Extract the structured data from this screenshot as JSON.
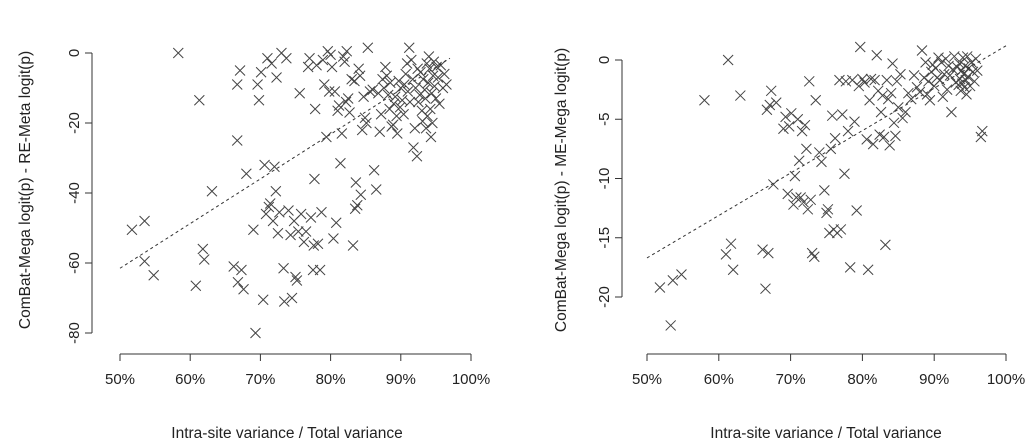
{
  "chart_data": [
    {
      "type": "scatter",
      "xlabel": "Intra-site variance / Total variance",
      "ylabel": "ComBat-Mega logit(p) - RE-Meta logit(p)",
      "xlim": [
        0.5,
        1.0
      ],
      "ylim": [
        -80,
        0
      ],
      "x_ticks": [
        0.5,
        0.6,
        0.7,
        0.8,
        0.9,
        1.0
      ],
      "x_tick_labels": [
        "50%",
        "60%",
        "70%",
        "80%",
        "90%",
        "100%"
      ],
      "y_ticks": [
        -80,
        -60,
        -40,
        -20,
        0
      ],
      "y_tick_labels": [
        "-80",
        "-60",
        "-40",
        "-20",
        "0"
      ],
      "marker": "x",
      "grid": false,
      "trend_line": {
        "style": "dashed",
        "x": [
          0.5,
          0.97
        ],
        "y": [
          -61.5,
          -1.5
        ]
      },
      "points": [
        [
          0.517,
          -50.5
        ],
        [
          0.535,
          -48
        ],
        [
          0.535,
          -59.5
        ],
        [
          0.548,
          -63.5
        ],
        [
          0.583,
          0
        ],
        [
          0.608,
          -66.5
        ],
        [
          0.613,
          -13.5
        ],
        [
          0.618,
          -56
        ],
        [
          0.62,
          -59
        ],
        [
          0.631,
          -39.5
        ],
        [
          0.662,
          -61
        ],
        [
          0.667,
          -25
        ],
        [
          0.667,
          -9
        ],
        [
          0.668,
          -65.5
        ],
        [
          0.671,
          -5
        ],
        [
          0.673,
          -62
        ],
        [
          0.676,
          -67.5
        ],
        [
          0.68,
          -34.5
        ],
        [
          0.69,
          -50.5
        ],
        [
          0.693,
          -80
        ],
        [
          0.696,
          -9
        ],
        [
          0.698,
          -13.5
        ],
        [
          0.701,
          -5.5
        ],
        [
          0.704,
          -70.5
        ],
        [
          0.706,
          -32
        ],
        [
          0.708,
          -46
        ],
        [
          0.71,
          -1.5
        ],
        [
          0.712,
          -44
        ],
        [
          0.714,
          -43
        ],
        [
          0.716,
          -3
        ],
        [
          0.718,
          -48
        ],
        [
          0.72,
          -32.5
        ],
        [
          0.722,
          -39.5
        ],
        [
          0.723,
          -7
        ],
        [
          0.725,
          -51.5
        ],
        [
          0.727,
          -45.5
        ],
        [
          0.73,
          0
        ],
        [
          0.733,
          -61.5
        ],
        [
          0.734,
          -71
        ],
        [
          0.737,
          -1.5
        ],
        [
          0.74,
          -45
        ],
        [
          0.743,
          -52
        ],
        [
          0.745,
          -70
        ],
        [
          0.748,
          -48
        ],
        [
          0.75,
          -64
        ],
        [
          0.752,
          -65
        ],
        [
          0.754,
          -51
        ],
        [
          0.756,
          -11.5
        ],
        [
          0.758,
          -46
        ],
        [
          0.762,
          -54
        ],
        [
          0.765,
          -51
        ],
        [
          0.768,
          -4
        ],
        [
          0.77,
          -1.5
        ],
        [
          0.772,
          -47
        ],
        [
          0.775,
          -62
        ],
        [
          0.776,
          -55
        ],
        [
          0.777,
          -36
        ],
        [
          0.778,
          -16
        ],
        [
          0.78,
          -3.5
        ],
        [
          0.782,
          -54.5
        ],
        [
          0.785,
          -62
        ],
        [
          0.787,
          -45.5
        ],
        [
          0.789,
          -2
        ],
        [
          0.791,
          -9
        ],
        [
          0.794,
          -24
        ],
        [
          0.796,
          0.5
        ],
        [
          0.798,
          -11
        ],
        [
          0.8,
          -0.5
        ],
        [
          0.802,
          -4
        ],
        [
          0.804,
          -53
        ],
        [
          0.806,
          -11
        ],
        [
          0.808,
          -48.5
        ],
        [
          0.81,
          -16.5
        ],
        [
          0.812,
          -15
        ],
        [
          0.814,
          -31.5
        ],
        [
          0.816,
          -23
        ],
        [
          0.818,
          -1
        ],
        [
          0.82,
          -2.5
        ],
        [
          0.822,
          -14
        ],
        [
          0.823,
          0.5
        ],
        [
          0.825,
          -13
        ],
        [
          0.827,
          -17
        ],
        [
          0.83,
          -7.5
        ],
        [
          0.832,
          -55
        ],
        [
          0.834,
          -8
        ],
        [
          0.835,
          -44.5
        ],
        [
          0.836,
          -37
        ],
        [
          0.838,
          -43.5
        ],
        [
          0.84,
          -4.5
        ],
        [
          0.842,
          -6.5
        ],
        [
          0.843,
          -40.5
        ],
        [
          0.845,
          -22
        ],
        [
          0.847,
          -12.5
        ],
        [
          0.849,
          -18.5
        ],
        [
          0.851,
          -20
        ],
        [
          0.853,
          1.5
        ],
        [
          0.856,
          -11
        ],
        [
          0.86,
          -10.5
        ],
        [
          0.862,
          -33.5
        ],
        [
          0.865,
          -39
        ],
        [
          0.868,
          -11.5
        ],
        [
          0.87,
          -22.5
        ],
        [
          0.872,
          -17.5
        ],
        [
          0.874,
          -7.5
        ],
        [
          0.876,
          -10
        ],
        [
          0.878,
          -4
        ],
        [
          0.88,
          -6.5
        ],
        [
          0.882,
          -12
        ],
        [
          0.884,
          -16
        ],
        [
          0.885,
          -8.5
        ],
        [
          0.887,
          -21
        ],
        [
          0.889,
          -20.5
        ],
        [
          0.89,
          -14.5
        ],
        [
          0.892,
          -12.5
        ],
        [
          0.894,
          -18
        ],
        [
          0.895,
          -23
        ],
        [
          0.897,
          -8
        ],
        [
          0.899,
          -15.5
        ],
        [
          0.9,
          -10
        ],
        [
          0.902,
          -13.5
        ],
        [
          0.904,
          -17.5
        ],
        [
          0.905,
          -9
        ],
        [
          0.907,
          -6
        ],
        [
          0.909,
          -3
        ],
        [
          0.91,
          -11
        ],
        [
          0.912,
          1.5
        ],
        [
          0.913,
          -14
        ],
        [
          0.915,
          -2
        ],
        [
          0.917,
          -7.5
        ],
        [
          0.918,
          -27
        ],
        [
          0.92,
          -21.5
        ],
        [
          0.921,
          -10
        ],
        [
          0.923,
          -29.5
        ],
        [
          0.924,
          -4.5
        ],
        [
          0.925,
          -14
        ],
        [
          0.927,
          -12
        ],
        [
          0.928,
          -5.5
        ],
        [
          0.93,
          -16.5
        ],
        [
          0.931,
          -19.5
        ],
        [
          0.932,
          -7.5
        ],
        [
          0.934,
          -10.5
        ],
        [
          0.935,
          -13
        ],
        [
          0.936,
          -21.5
        ],
        [
          0.937,
          -3
        ],
        [
          0.938,
          -18
        ],
        [
          0.939,
          -8.5
        ],
        [
          0.94,
          -1
        ],
        [
          0.941,
          -4.5
        ],
        [
          0.942,
          -16
        ],
        [
          0.943,
          -24
        ],
        [
          0.944,
          -11.5
        ],
        [
          0.945,
          -20
        ],
        [
          0.946,
          -6.5
        ],
        [
          0.947,
          -2.5
        ],
        [
          0.948,
          -9.5
        ],
        [
          0.95,
          -13
        ],
        [
          0.951,
          -4
        ],
        [
          0.953,
          -7
        ],
        [
          0.955,
          -14.5
        ],
        [
          0.957,
          -3.5
        ],
        [
          0.96,
          -10
        ],
        [
          0.962,
          -6
        ],
        [
          0.965,
          -9
        ]
      ]
    },
    {
      "type": "scatter",
      "xlabel": "Intra-site variance / Total variance",
      "ylabel": "ComBat-Mega logit(p) - ME-Mega logit(p)",
      "xlim": [
        0.5,
        1.0
      ],
      "ylim": [
        -20,
        0
      ],
      "x_ticks": [
        0.5,
        0.6,
        0.7,
        0.8,
        0.9,
        1.0
      ],
      "x_tick_labels": [
        "50%",
        "60%",
        "70%",
        "80%",
        "90%",
        "100%"
      ],
      "y_ticks": [
        -20,
        -15,
        -10,
        -5,
        0
      ],
      "y_tick_labels": [
        "-20",
        "-15",
        "-10",
        "-5",
        "0"
      ],
      "marker": "x",
      "grid": false,
      "trend_line": {
        "style": "dashed",
        "x": [
          0.5,
          1.0
        ],
        "y": [
          -16.7,
          1.2
        ]
      },
      "points": [
        [
          0.518,
          -19.2
        ],
        [
          0.533,
          -22.4
        ],
        [
          0.536,
          -18.6
        ],
        [
          0.548,
          -18.1
        ],
        [
          0.58,
          -3.4
        ],
        [
          0.61,
          -16.4
        ],
        [
          0.613,
          0
        ],
        [
          0.617,
          -15.5
        ],
        [
          0.62,
          -17.7
        ],
        [
          0.63,
          -3
        ],
        [
          0.661,
          -16
        ],
        [
          0.665,
          -19.3
        ],
        [
          0.667,
          -4.2
        ],
        [
          0.669,
          -16.3
        ],
        [
          0.671,
          -3.8
        ],
        [
          0.673,
          -2.6
        ],
        [
          0.676,
          -10.5
        ],
        [
          0.68,
          -3.6
        ],
        [
          0.69,
          -5.8
        ],
        [
          0.693,
          -4.8
        ],
        [
          0.696,
          -11.3
        ],
        [
          0.698,
          -5.6
        ],
        [
          0.701,
          -4.5
        ],
        [
          0.704,
          -12.2
        ],
        [
          0.706,
          -9.8
        ],
        [
          0.708,
          -11.6
        ],
        [
          0.71,
          -5
        ],
        [
          0.712,
          -8.5
        ],
        [
          0.714,
          -11.6
        ],
        [
          0.716,
          -6
        ],
        [
          0.718,
          -12
        ],
        [
          0.72,
          -5.5
        ],
        [
          0.722,
          -7.5
        ],
        [
          0.724,
          -12.6
        ],
        [
          0.726,
          -1.8
        ],
        [
          0.728,
          -11.8
        ],
        [
          0.73,
          -16.3
        ],
        [
          0.733,
          -16.6
        ],
        [
          0.735,
          -3.4
        ],
        [
          0.74,
          -7.8
        ],
        [
          0.743,
          -8.6
        ],
        [
          0.747,
          -11
        ],
        [
          0.75,
          -12.9
        ],
        [
          0.752,
          -12.6
        ],
        [
          0.754,
          -14.6
        ],
        [
          0.756,
          -7.5
        ],
        [
          0.758,
          -4.7
        ],
        [
          0.76,
          -14.3
        ],
        [
          0.762,
          -6.6
        ],
        [
          0.765,
          -14.6
        ],
        [
          0.768,
          -1.7
        ],
        [
          0.77,
          -14.3
        ],
        [
          0.772,
          -4.6
        ],
        [
          0.775,
          -9.6
        ],
        [
          0.777,
          -1.8
        ],
        [
          0.78,
          -6
        ],
        [
          0.783,
          -17.5
        ],
        [
          0.786,
          -1.7
        ],
        [
          0.789,
          -5.2
        ],
        [
          0.792,
          -12.7
        ],
        [
          0.795,
          -2.2
        ],
        [
          0.797,
          1.1
        ],
        [
          0.8,
          -1.6
        ],
        [
          0.803,
          -1.9
        ],
        [
          0.806,
          -6.7
        ],
        [
          0.808,
          -17.7
        ],
        [
          0.81,
          -3.4
        ],
        [
          0.812,
          -1.6
        ],
        [
          0.815,
          -7.1
        ],
        [
          0.817,
          -1.7
        ],
        [
          0.82,
          0.4
        ],
        [
          0.822,
          -2.6
        ],
        [
          0.824,
          -6.3
        ],
        [
          0.826,
          -4.4
        ],
        [
          0.828,
          -3
        ],
        [
          0.83,
          -6.5
        ],
        [
          0.832,
          -15.6
        ],
        [
          0.834,
          -1.7
        ],
        [
          0.836,
          -3.3
        ],
        [
          0.838,
          -7.2
        ],
        [
          0.84,
          -2.8
        ],
        [
          0.842,
          -0.3
        ],
        [
          0.844,
          -5.3
        ],
        [
          0.846,
          -6.4
        ],
        [
          0.848,
          -1.8
        ],
        [
          0.85,
          -4
        ],
        [
          0.853,
          -1.2
        ],
        [
          0.856,
          -4.9
        ],
        [
          0.86,
          -4.4
        ],
        [
          0.864,
          -2.8
        ],
        [
          0.868,
          -3.3
        ],
        [
          0.872,
          -1.3
        ],
        [
          0.876,
          -2.3
        ],
        [
          0.88,
          -2.7
        ],
        [
          0.883,
          0.8
        ],
        [
          0.886,
          -1.5
        ],
        [
          0.888,
          -0.2
        ],
        [
          0.89,
          -2.9
        ],
        [
          0.892,
          -1.8
        ],
        [
          0.894,
          -3.4
        ],
        [
          0.896,
          -1
        ],
        [
          0.898,
          -0.4
        ],
        [
          0.9,
          -2.2
        ],
        [
          0.902,
          -0.7
        ],
        [
          0.904,
          -1.5
        ],
        [
          0.906,
          0.2
        ],
        [
          0.908,
          -1.7
        ],
        [
          0.91,
          -0.2
        ],
        [
          0.912,
          -3.1
        ],
        [
          0.914,
          -1.2
        ],
        [
          0.916,
          0.1
        ],
        [
          0.918,
          -2.5
        ],
        [
          0.92,
          -0.5
        ],
        [
          0.922,
          -1.3
        ],
        [
          0.924,
          -4.4
        ],
        [
          0.926,
          -0.8
        ],
        [
          0.928,
          0.3
        ],
        [
          0.93,
          -1.9
        ],
        [
          0.932,
          -0.6
        ],
        [
          0.934,
          -2.1
        ],
        [
          0.935,
          -0.3
        ],
        [
          0.936,
          -1.6
        ],
        [
          0.937,
          -2.6
        ],
        [
          0.938,
          -0.9
        ],
        [
          0.939,
          -2
        ],
        [
          0.94,
          0.2
        ],
        [
          0.941,
          -1.2
        ],
        [
          0.942,
          -2.3
        ],
        [
          0.943,
          -0.5
        ],
        [
          0.944,
          -1.7
        ],
        [
          0.945,
          -2.9
        ],
        [
          0.946,
          0.3
        ],
        [
          0.947,
          -1.4
        ],
        [
          0.948,
          -0.7
        ],
        [
          0.95,
          -2.2
        ],
        [
          0.952,
          -0.2
        ],
        [
          0.954,
          -1
        ],
        [
          0.956,
          -1.8
        ],
        [
          0.958,
          0.1
        ],
        [
          0.96,
          -0.9
        ],
        [
          0.965,
          -6.5
        ],
        [
          0.967,
          -6
        ]
      ]
    }
  ]
}
